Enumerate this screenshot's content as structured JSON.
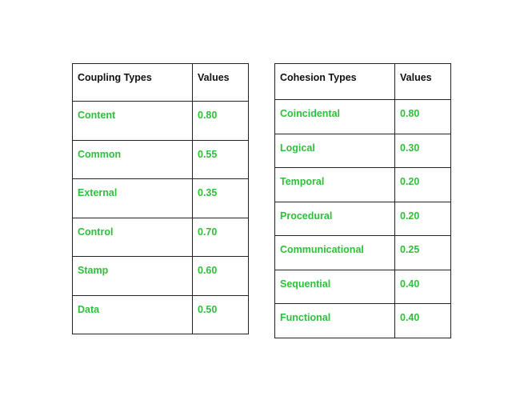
{
  "coupling_table": {
    "headers": [
      "Coupling Types",
      "Values"
    ],
    "rows": [
      {
        "type": "Content",
        "value": "0.80"
      },
      {
        "type": "Common",
        "value": "0.55"
      },
      {
        "type": "External",
        "value": "0.35"
      },
      {
        "type": "Control",
        "value": "0.70"
      },
      {
        "type": "Stamp",
        "value": "0.60"
      },
      {
        "type": "Data",
        "value": "0.50"
      }
    ]
  },
  "cohesion_table": {
    "headers": [
      "Cohesion Types",
      "Values"
    ],
    "rows": [
      {
        "type": "Coincidental",
        "value": "0.80"
      },
      {
        "type": "Logical",
        "value": "0.30"
      },
      {
        "type": "Temporal",
        "value": "0.20"
      },
      {
        "type": "Procedural",
        "value": "0.20"
      },
      {
        "type": "Communicational",
        "value": "0.25"
      },
      {
        "type": "Sequential",
        "value": "0.40"
      },
      {
        "type": "Functional",
        "value": "0.40"
      }
    ]
  },
  "colors": {
    "header_text": "#111111",
    "cell_text": "#2fbf3a",
    "border": "#222222"
  }
}
